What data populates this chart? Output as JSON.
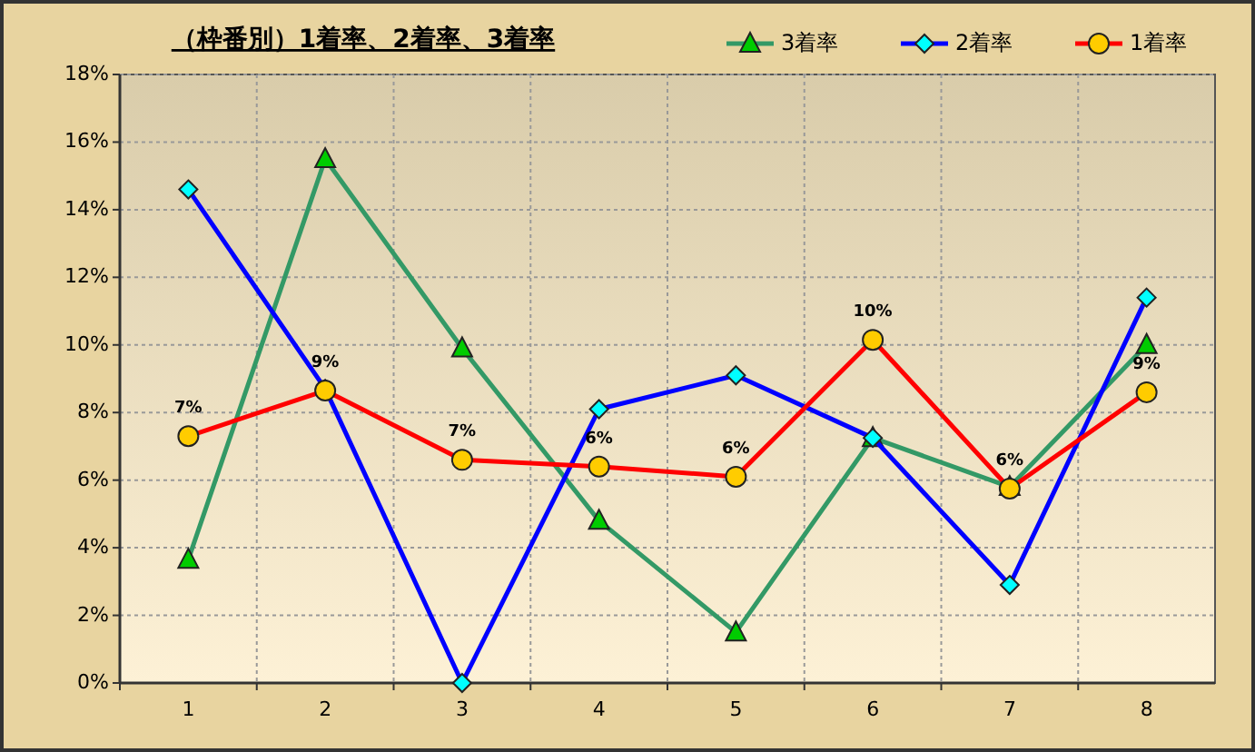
{
  "chart_data": {
    "type": "line",
    "title": "（枠番別）1着率、2着率、3着率",
    "categories": [
      "1",
      "2",
      "3",
      "4",
      "5",
      "6",
      "7",
      "8"
    ],
    "series": [
      {
        "name": "3着率",
        "color": "#339966",
        "marker": "triangle",
        "values": [
          3.65,
          15.5,
          9.9,
          4.8,
          1.5,
          7.25,
          5.8,
          10.0
        ]
      },
      {
        "name": "2着率",
        "color": "#0000ff",
        "marker": "diamond",
        "values": [
          14.6,
          8.7,
          0,
          8.1,
          9.1,
          7.25,
          2.9,
          11.4
        ]
      },
      {
        "name": "1着率",
        "color": "#ff0000",
        "marker": "circle",
        "values": [
          7.3,
          8.65,
          6.6,
          6.4,
          6.1,
          10.15,
          5.75,
          8.6
        ],
        "value_labels": [
          "7%",
          "9%",
          "7%",
          "6%",
          "6%",
          "10%",
          "6%",
          "9%"
        ]
      }
    ],
    "ylim": [
      0,
      18
    ],
    "yticks": [
      {
        "value": 0,
        "label": "0%"
      },
      {
        "value": 2,
        "label": "2%"
      },
      {
        "value": 4,
        "label": "4%"
      },
      {
        "value": 6,
        "label": "6%"
      },
      {
        "value": 8,
        "label": "8%"
      },
      {
        "value": 10,
        "label": "10%"
      },
      {
        "value": 12,
        "label": "12%"
      },
      {
        "value": 14,
        "label": "14%"
      },
      {
        "value": 16,
        "label": "16%"
      },
      {
        "value": 18,
        "label": "18%"
      }
    ],
    "grid": true,
    "legend": "top right"
  }
}
